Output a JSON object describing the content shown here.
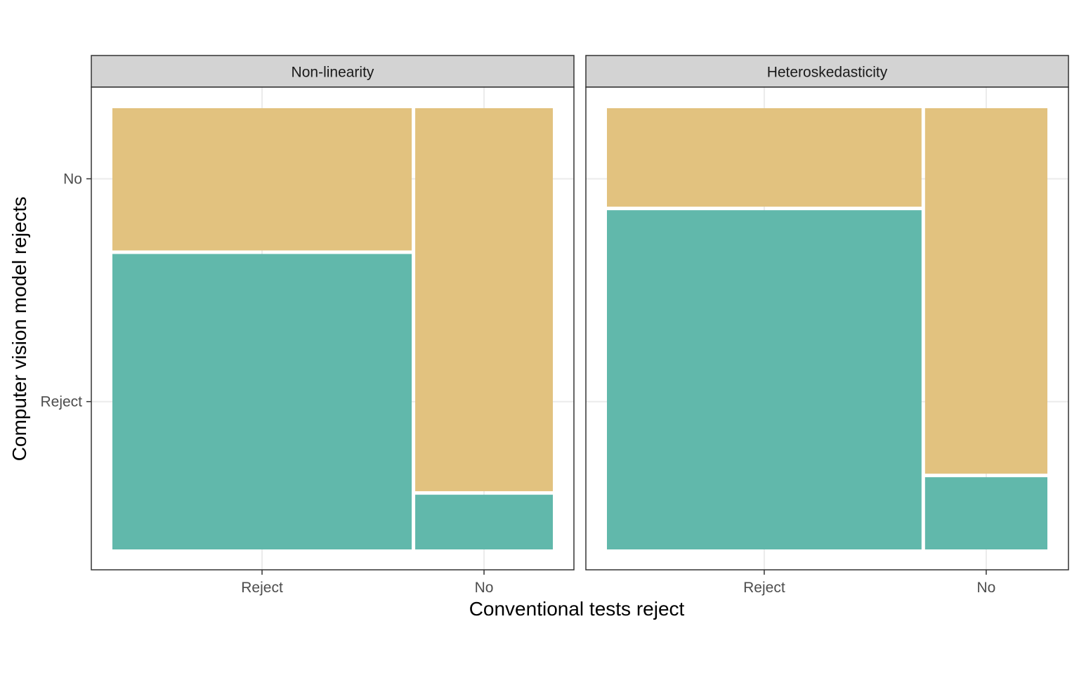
{
  "chart_data": {
    "type": "mosaic",
    "xlabel": "Conventional tests reject",
    "ylabel": "Computer vision model rejects",
    "x_categories": [
      "Reject",
      "No"
    ],
    "y_categories": [
      "Reject",
      "No"
    ],
    "fills": {
      "Reject": "#5BB5A8",
      "No": "#E1C07A"
    },
    "grid": true,
    "legend": "none",
    "panels": [
      {
        "strip": "Non-linearity",
        "x_proportions": {
          "Reject": 0.685,
          "No": 0.315
        },
        "reject_share_within": {
          "Reject": 0.675,
          "No": 0.125
        }
      },
      {
        "strip": "Heteroskedasticity",
        "x_proportions": {
          "Reject": 0.72,
          "No": 0.28
        },
        "reject_share_within": {
          "Reject": 0.775,
          "No": 0.165
        }
      }
    ]
  }
}
